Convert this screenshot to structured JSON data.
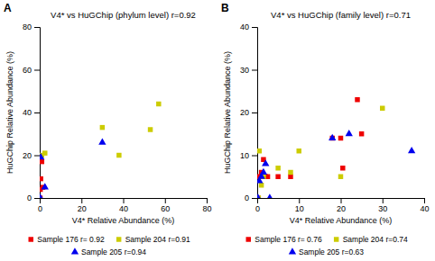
{
  "chart_data": [
    {
      "type": "scatter",
      "title": "V4* vs HuGChip (phylum level) r=0.92",
      "xlabel": "V4* Relative Abundance (%)",
      "ylabel": "HuGChip Relative Abundance (%)",
      "annotations": [
        "A"
      ],
      "xlim": [
        0,
        80
      ],
      "ylim": [
        0,
        80
      ],
      "xticks": [
        0,
        20,
        40,
        60,
        80
      ],
      "yticks": [
        0,
        20,
        40,
        60,
        80
      ],
      "grid": false,
      "legend": "bottom",
      "series": [
        {
          "name": "Sample 176 r= 0.92",
          "color": "#EE0000",
          "marker": "square",
          "x": [
            0.5,
            1.0,
            1.5,
            0.3,
            0.2
          ],
          "values": [
            9,
            17,
            5,
            4,
            0
          ]
        },
        {
          "name": "Sample 204 r=0.91",
          "color": "#CCCC00",
          "marker": "square",
          "x": [
            2.5,
            1.0,
            30,
            38,
            53,
            57
          ],
          "values": [
            21,
            20,
            33,
            20,
            32,
            44
          ]
        },
        {
          "name": "Sample 205 r=0.94",
          "color": "#0000EE",
          "marker": "triangle",
          "x": [
            0.5,
            2.5,
            30,
            0.3
          ],
          "values": [
            19,
            5,
            26,
            0
          ]
        }
      ]
    },
    {
      "type": "scatter",
      "title": "V4* vs HuGChip (family level) r=0.71",
      "xlabel": "V4* Relative Abundance (%)",
      "ylabel": "HuGChip Relative Abundance (%)",
      "annotations": [
        "B"
      ],
      "xlim": [
        0,
        40
      ],
      "ylim": [
        0,
        40
      ],
      "xticks": [
        0,
        10,
        20,
        30,
        40
      ],
      "yticks": [
        0,
        10,
        20,
        30,
        40
      ],
      "grid": false,
      "legend": "bottom",
      "series": [
        {
          "name": "Sample 176 r= 0.76",
          "color": "#EE0000",
          "marker": "square",
          "x": [
            0.2,
            0.5,
            1.0,
            1.5,
            2.0,
            2.5,
            5.0,
            8.0,
            18.0,
            20.0,
            25.0,
            20.5,
            24.0
          ],
          "values": [
            0,
            5,
            6,
            9,
            5,
            5,
            5,
            5,
            14,
            14,
            15,
            7,
            23
          ]
        },
        {
          "name": "Sample 204 r=0.74",
          "color": "#CCCC00",
          "marker": "square",
          "x": [
            0.3,
            0.5,
            1.0,
            1.5,
            5.0,
            8.0,
            10.0,
            20.0,
            30.0
          ],
          "values": [
            0,
            11,
            3,
            5,
            7,
            6,
            11,
            5,
            21
          ]
        },
        {
          "name": "Sample 205 r=0.63",
          "color": "#0000EE",
          "marker": "triangle",
          "x": [
            0.2,
            0.5,
            1.0,
            1.5,
            2.0,
            3.0,
            18.0,
            22.0,
            37.0
          ],
          "values": [
            0,
            4,
            5,
            6,
            8,
            0,
            14,
            15,
            11
          ]
        }
      ]
    }
  ]
}
